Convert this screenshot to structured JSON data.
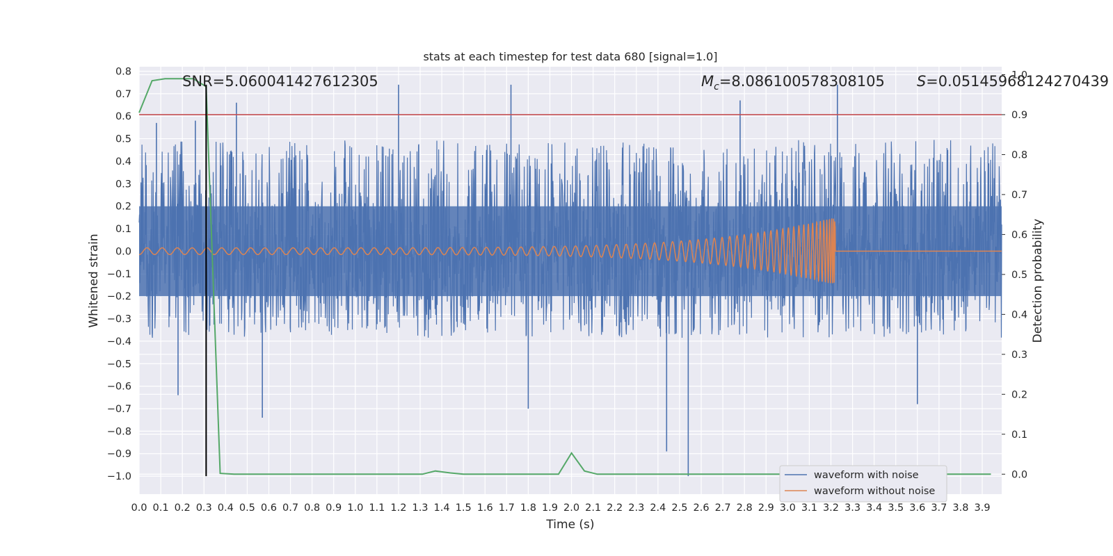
{
  "chart_data": {
    "type": "line",
    "title": "stats at each timestep for test data 680 [signal=1.0]",
    "xlabel": "Time (s)",
    "ylabel": "Whitened strain",
    "ylabel_right": "Detection probability",
    "xlim": [
      0.0,
      3.99
    ],
    "ylim": [
      -1.08,
      0.82
    ],
    "ylim_right": [
      -0.05,
      1.02
    ],
    "x_ticks": [
      "0.0",
      "0.1",
      "0.2",
      "0.3",
      "0.4",
      "0.5",
      "0.6",
      "0.7",
      "0.8",
      "0.9",
      "1.0",
      "1.1",
      "1.2",
      "1.3",
      "1.4",
      "1.5",
      "1.6",
      "1.7",
      "1.8",
      "1.9",
      "2.0",
      "2.1",
      "2.2",
      "2.3",
      "2.4",
      "2.5",
      "2.6",
      "2.7",
      "2.8",
      "2.9",
      "3.0",
      "3.1",
      "3.2",
      "3.3",
      "3.4",
      "3.5",
      "3.6",
      "3.7",
      "3.8",
      "3.9"
    ],
    "y_ticks": [
      "0.8",
      "0.7",
      "0.6",
      "0.5",
      "0.4",
      "0.3",
      "0.2",
      "0.1",
      "0.0",
      "−0.1",
      "−0.2",
      "−0.3",
      "−0.4",
      "−0.5",
      "−0.6",
      "−0.7",
      "−0.8",
      "−0.9",
      "−1.0"
    ],
    "y_ticks_right": [
      "1.0",
      "0.9",
      "0.8",
      "0.7",
      "0.6",
      "0.5",
      "0.4",
      "0.3",
      "0.2",
      "0.1",
      "0.0"
    ],
    "grid": true,
    "legend_position": "lower-right",
    "series": [
      {
        "name": "waveform with noise",
        "color": "#4c72b0",
        "axis": "left",
        "style": "noise band",
        "band": [
          -0.35,
          0.45
        ],
        "peaks": [
          [
            0.08,
            0.57
          ],
          [
            0.26,
            0.58
          ],
          [
            0.45,
            0.66
          ],
          [
            1.2,
            0.74
          ],
          [
            1.72,
            0.74
          ],
          [
            2.78,
            0.67
          ],
          [
            3.23,
            0.74
          ],
          [
            0.18,
            -0.64
          ],
          [
            0.57,
            -0.74
          ],
          [
            1.8,
            -0.7
          ],
          [
            2.44,
            -0.89
          ],
          [
            2.54,
            -1.0
          ],
          [
            3.6,
            -0.68
          ]
        ]
      },
      {
        "name": "waveform without noise",
        "color": "#dd8452",
        "axis": "left",
        "style": "chirp",
        "amplitude_start": 0.015,
        "amplitude_end": 0.15,
        "end_time": 3.22
      },
      {
        "color": "#55a868",
        "axis": "right",
        "x": [
          0.0,
          0.06,
          0.12,
          0.25,
          0.31,
          0.375,
          0.44,
          1.31,
          1.37,
          1.44,
          1.5,
          1.94,
          2.0,
          2.06,
          2.12,
          3.94
        ],
        "y": [
          0.905,
          0.985,
          0.99,
          0.99,
          0.97,
          0.002,
          0.0,
          0.0,
          0.008,
          0.003,
          0.0,
          0.0,
          0.053,
          0.008,
          0.0,
          0.0
        ]
      }
    ],
    "hlines": [
      {
        "axis": "right",
        "y": 0.9,
        "color": "#c44e52"
      }
    ],
    "vlines": [
      {
        "x": 0.31,
        "y_from": -1.0,
        "y_to": 0.74,
        "color": "#000000"
      }
    ],
    "annotations": {
      "snr": "SNR=5.060041427612305",
      "mc_symbol": "M",
      "mc_sub": "c",
      "mc_value": "=8.086100578308105",
      "s_symbol": "S",
      "s_value": "=0.05145968124270439"
    }
  }
}
